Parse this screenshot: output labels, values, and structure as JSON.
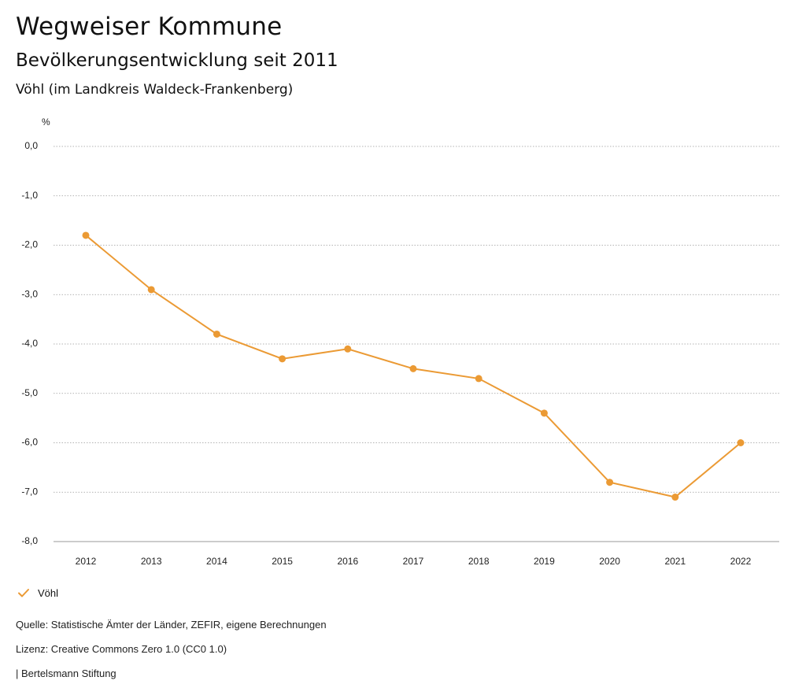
{
  "header": {
    "title": "Wegweiser Kommune",
    "subtitle": "Bevölkerungsentwicklung seit 2011",
    "region": "Vöhl (im Landkreis Waldeck-Frankenberg)"
  },
  "chart_data": {
    "type": "line",
    "unit_label": "%",
    "categories": [
      "2012",
      "2013",
      "2014",
      "2015",
      "2016",
      "2017",
      "2018",
      "2019",
      "2020",
      "2021",
      "2022"
    ],
    "series": [
      {
        "name": "Vöhl",
        "color": "#EB9A34",
        "values": [
          -1.8,
          -2.9,
          -3.8,
          -4.3,
          -4.1,
          -4.5,
          -4.7,
          -5.4,
          -6.8,
          -7.1,
          -6.0
        ]
      }
    ],
    "ylim": [
      -8,
      0
    ],
    "yticks": [
      0,
      -1,
      -2,
      -3,
      -4,
      -5,
      -6,
      -7,
      -8
    ],
    "ytick_labels": [
      "0,0",
      "-1,0",
      "-2,0",
      "-3,0",
      "-4,0",
      "-5,0",
      "-6,0",
      "-7,0",
      "-8,0"
    ],
    "grid": "dotted-horizontal",
    "legend_placement": "bottom-left"
  },
  "footer": {
    "source": "Quelle: Statistische Ämter der Länder, ZEFIR, eigene Berechnungen",
    "license": "Lizenz: Creative Commons Zero 1.0 (CC0 1.0)",
    "publisher": "| Bertelsmann Stiftung"
  }
}
